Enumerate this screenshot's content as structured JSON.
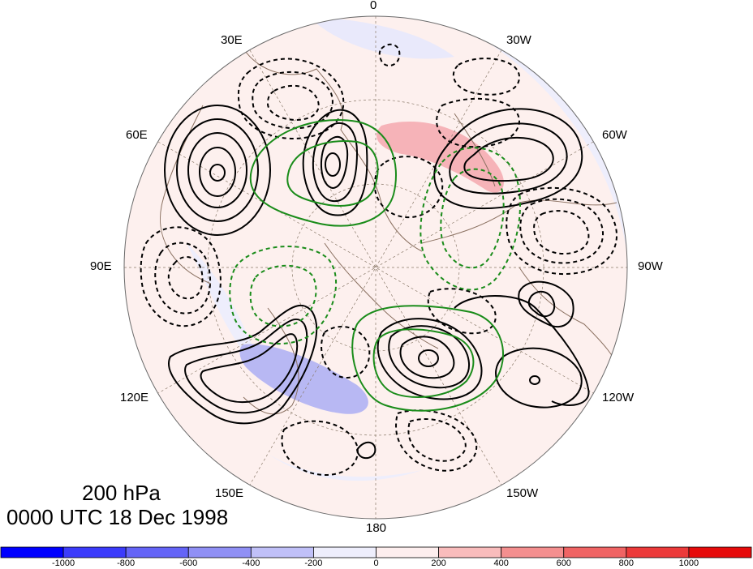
{
  "map": {
    "longitude_labels": {
      "lon_0": "0",
      "lon_30w": "30W",
      "lon_60w": "60W",
      "lon_90w": "90W",
      "lon_120w": "120W",
      "lon_150w": "150W",
      "lon_180": "180",
      "lon_150e": "150E",
      "lon_120e": "120E",
      "lon_90e": "90E",
      "lon_60e": "60E",
      "lon_30e": "30E"
    },
    "projection": "north-polar-stereographic",
    "contour_colors": {
      "positive": "#000000",
      "negative_dashed": "#000000",
      "green": "#1a8c1a"
    }
  },
  "caption": {
    "level": "200 hPa",
    "time": "0000 UTC 18 Dec 1998"
  },
  "colorbar": {
    "labels": [
      "-1000",
      "-800",
      "-600",
      "-400",
      "-200",
      "0",
      "200",
      "400",
      "600",
      "800",
      "1000"
    ],
    "colors": [
      "#0000ff",
      "#3b3bfb",
      "#6464f7",
      "#9090f5",
      "#c0c0f8",
      "#eeeefc",
      "#fdeeee",
      "#f9bcbc",
      "#f48f8f",
      "#f06464",
      "#ec3a3a",
      "#e60b0b"
    ]
  }
}
